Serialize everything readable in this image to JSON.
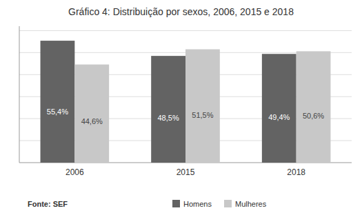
{
  "chart_data": {
    "type": "bar",
    "title": "Gráfico 4: Distribuição por sexos, 2006, 2015 e 2018",
    "categories": [
      "2006",
      "2015",
      "2018"
    ],
    "series": [
      {
        "name": "Homens",
        "color": "#636363",
        "values": [
          55.4,
          48.5,
          49.4
        ],
        "value_labels": [
          "55,4%",
          "48,5%",
          "49,4%"
        ]
      },
      {
        "name": "Mulheres",
        "color": "#c8c8c8",
        "values": [
          44.6,
          51.5,
          50.6
        ],
        "value_labels": [
          "44,6%",
          "51,5%",
          "50,6%"
        ]
      }
    ],
    "ylim": [
      0,
      62
    ],
    "yticks": [
      10,
      20,
      30,
      40,
      50,
      60
    ],
    "grid": true,
    "tick_labels": "x",
    "data_labels": true,
    "legend": "bottom",
    "annotations": [
      "Fonte: SEF"
    ]
  }
}
